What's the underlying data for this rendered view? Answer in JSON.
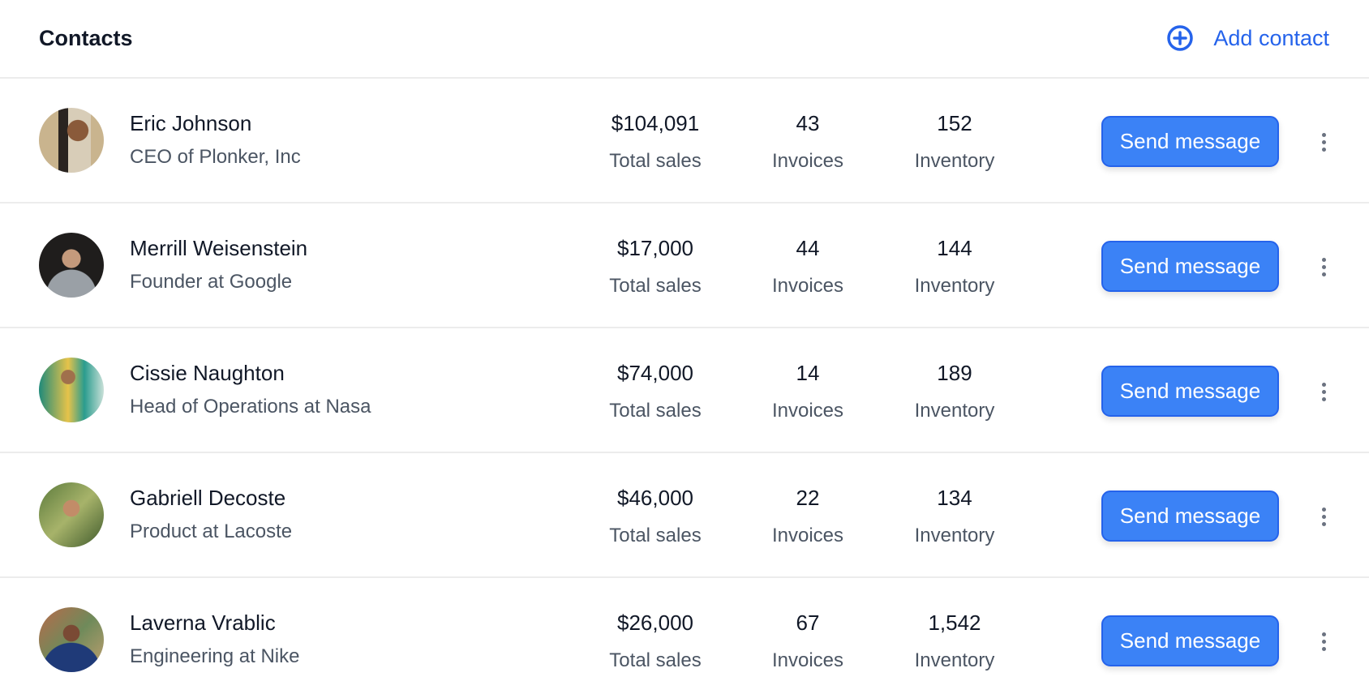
{
  "header": {
    "title": "Contacts",
    "add_label": "Add contact",
    "add_icon": "plus-circle-icon",
    "accent": "#2563eb"
  },
  "labels": {
    "sales": "Total sales",
    "invoices": "Invoices",
    "inventory": "Inventory",
    "send": "Send message"
  },
  "contacts": [
    {
      "name": "Eric Johnson",
      "title": "CEO of Plonker, Inc",
      "sales": "$104,091",
      "invoices": "43",
      "inventory": "152"
    },
    {
      "name": "Merrill Weisenstein",
      "title": "Founder at Google",
      "sales": "$17,000",
      "invoices": "44",
      "inventory": "144"
    },
    {
      "name": "Cissie Naughton",
      "title": "Head of Operations at Nasa",
      "sales": "$74,000",
      "invoices": "14",
      "inventory": "189"
    },
    {
      "name": "Gabriell Decoste",
      "title": "Product at Lacoste",
      "sales": "$46,000",
      "invoices": "22",
      "inventory": "134"
    },
    {
      "name": "Laverna Vrablic",
      "title": "Engineering at Nike",
      "sales": "$26,000",
      "invoices": "67",
      "inventory": "1,542"
    }
  ]
}
